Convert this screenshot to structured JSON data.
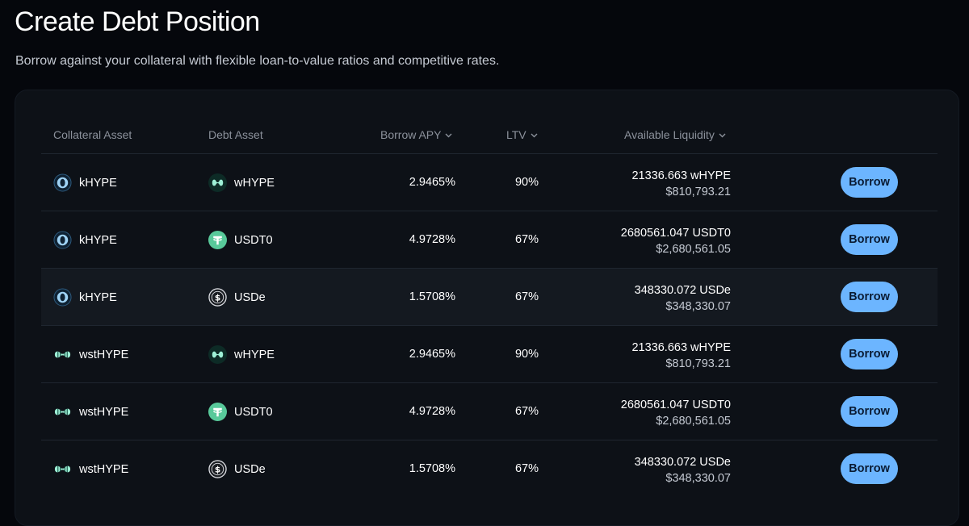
{
  "page": {
    "title": "Create Debt Position",
    "subtitle": "Borrow against your collateral with flexible loan-to-value ratios and competitive rates."
  },
  "table": {
    "headers": {
      "collateral": "Collateral Asset",
      "debt": "Debt Asset",
      "apy": "Borrow APY",
      "ltv": "LTV",
      "liquidity": "Available Liquidity"
    },
    "rows": [
      {
        "collateral": "kHYPE",
        "collateral_icon": "khype-icon",
        "debt": "wHYPE",
        "debt_icon": "whype-icon",
        "apy": "2.9465%",
        "ltv": "90%",
        "liquidity": "21336.663 wHYPE",
        "liquidity_usd": "$810,793.21",
        "action": "Borrow"
      },
      {
        "collateral": "kHYPE",
        "collateral_icon": "khype-icon",
        "debt": "USDT0",
        "debt_icon": "usdt0-icon",
        "apy": "4.9728%",
        "ltv": "67%",
        "liquidity": "2680561.047 USDT0",
        "liquidity_usd": "$2,680,561.05",
        "action": "Borrow"
      },
      {
        "collateral": "kHYPE",
        "collateral_icon": "khype-icon",
        "debt": "USDe",
        "debt_icon": "usde-icon",
        "apy": "1.5708%",
        "ltv": "67%",
        "liquidity": "348330.072 USDe",
        "liquidity_usd": "$348,330.07",
        "action": "Borrow"
      },
      {
        "collateral": "wstHYPE",
        "collateral_icon": "wsthype-icon",
        "debt": "wHYPE",
        "debt_icon": "whype-icon",
        "apy": "2.9465%",
        "ltv": "90%",
        "liquidity": "21336.663 wHYPE",
        "liquidity_usd": "$810,793.21",
        "action": "Borrow"
      },
      {
        "collateral": "wstHYPE",
        "collateral_icon": "wsthype-icon",
        "debt": "USDT0",
        "debt_icon": "usdt0-icon",
        "apy": "4.9728%",
        "ltv": "67%",
        "liquidity": "2680561.047 USDT0",
        "liquidity_usd": "$2,680,561.05",
        "action": "Borrow"
      },
      {
        "collateral": "wstHYPE",
        "collateral_icon": "wsthype-icon",
        "debt": "USDe",
        "debt_icon": "usde-icon",
        "apy": "1.5708%",
        "ltv": "67%",
        "liquidity": "348330.072 USDe",
        "liquidity_usd": "$348,330.07",
        "action": "Borrow"
      }
    ]
  },
  "colors": {
    "background": "#05070c",
    "card": "#0d1117",
    "button": "#6cb5ff",
    "header_text": "#8b919b"
  }
}
